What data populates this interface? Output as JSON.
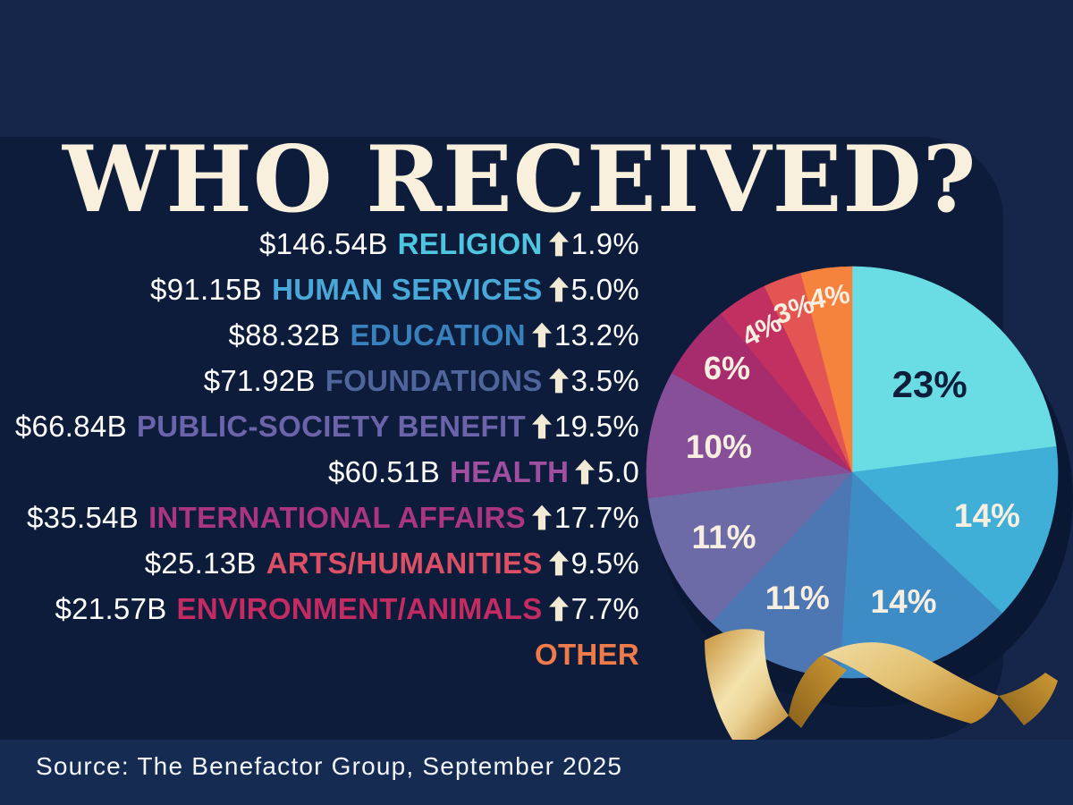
{
  "title": "WHO RECEIVED?",
  "source_text": "Source: The Benefactor Group, September 2025",
  "colors": {
    "background": "#16264B",
    "panel": "#0C1C3A",
    "bottom_strip": "#152B52",
    "title_cream": "#F8F0DD",
    "arrow_cream": "#F3EAD6",
    "pie_label_cream": "#F8EFE1",
    "pie_label_dark": "#0D1E3C",
    "ribbon_gold_light": "#F4E3AE",
    "ribbon_gold_dark": "#8A611B"
  },
  "list": {
    "items": [
      {
        "amount": "$146.54B",
        "category": "RELIGION",
        "change": "1.9%",
        "color": "#4FC6E0"
      },
      {
        "amount": "$91.15B",
        "category": "HUMAN SERVICES",
        "change": "5.0%",
        "color": "#49A8D8"
      },
      {
        "amount": "$88.32B",
        "category": "EDUCATION",
        "change": "13.2%",
        "color": "#3981BC"
      },
      {
        "amount": "$71.92B",
        "category": "FOUNDATIONS",
        "change": "3.5%",
        "color": "#51659D"
      },
      {
        "amount": "$66.84B",
        "category": "PUBLIC-SOCIETY BENEFIT",
        "change": "19.5%",
        "color": "#6C64AB"
      },
      {
        "amount": "$60.51B",
        "category": "HEALTH",
        "change": "5.0",
        "color": "#A04FA0"
      },
      {
        "amount": "$35.54B",
        "category": "INTERNATIONAL AFFAIRS",
        "change": "17.7%",
        "color": "#AA3580"
      },
      {
        "amount": "$25.13B",
        "category": "ARTS/HUMANITIES",
        "change": "9.5%",
        "color": "#DB5065"
      },
      {
        "amount": "$21.57B",
        "category": "ENVIRONMENT/ANIMALS",
        "change": "7.7%",
        "color": "#C52B63"
      },
      {
        "amount": "",
        "category": "OTHER",
        "change": "",
        "color": "#F07B4A"
      }
    ]
  },
  "chart_data": {
    "type": "pie",
    "start_angle_deg": 0,
    "direction": "clockwise",
    "legend_position": "none",
    "categories": [
      "Religion",
      "Human Services",
      "Education",
      "Foundations",
      "Public-Society Benefit",
      "Health",
      "International Affairs",
      "Arts/Humanities",
      "Environment/Animals",
      "Other"
    ],
    "values": [
      23,
      14,
      14,
      11,
      11,
      10,
      6,
      4,
      3,
      4
    ],
    "slices": [
      {
        "category": "Religion",
        "value": 23,
        "label": "23%",
        "color": "#69DDE3",
        "label_color": "#0D1E3C",
        "label_r": 0.57,
        "label_size": 42,
        "label_rotate": 0
      },
      {
        "category": "Human Services",
        "value": 14,
        "label": "14%",
        "color": "#3FAFD8",
        "label_color": "#F8EFE1",
        "label_r": 0.69,
        "label_size": 37,
        "label_rotate": 0
      },
      {
        "category": "Education",
        "value": 14,
        "label": "14%",
        "color": "#3E8CC6",
        "label_color": "#F8EFE1",
        "label_r": 0.68,
        "label_size": 37,
        "label_rotate": 0
      },
      {
        "category": "Foundations",
        "value": 11,
        "label": "11%",
        "color": "#4D77B3",
        "label_color": "#F8EFE1",
        "label_r": 0.67,
        "label_size": 37,
        "label_rotate": 0
      },
      {
        "category": "Public-Society Benefit",
        "value": 11,
        "label": "11%",
        "color": "#6C6BA7",
        "label_color": "#F8EFE1",
        "label_r": 0.7,
        "label_size": 37,
        "label_rotate": 0
      },
      {
        "category": "Health",
        "value": 10,
        "label": "10%",
        "color": "#874F97",
        "label_color": "#F8EFE1",
        "label_r": 0.66,
        "label_size": 37,
        "label_rotate": 0
      },
      {
        "category": "International Affairs",
        "value": 6,
        "label": "6%",
        "color": "#A72C6E",
        "label_color": "#F8EFE1",
        "label_r": 0.79,
        "label_size": 36,
        "label_rotate": 0
      },
      {
        "category": "Arts/Humanities",
        "value": 4,
        "label": "4%",
        "color": "#C23061",
        "label_color": "#F8EFE1",
        "label_r": 0.82,
        "label_size": 31,
        "label_rotate": -28
      },
      {
        "category": "Environment/Animals",
        "value": 3,
        "label": "3%",
        "color": "#E25552",
        "label_color": "#F8EFE1",
        "label_r": 0.84,
        "label_size": 31,
        "label_rotate": -20
      },
      {
        "category": "Other",
        "value": 4,
        "label": "4%",
        "color": "#F5823D",
        "label_color": "#F8EFE1",
        "label_r": 0.86,
        "label_size": 31,
        "label_rotate": -10
      }
    ]
  }
}
